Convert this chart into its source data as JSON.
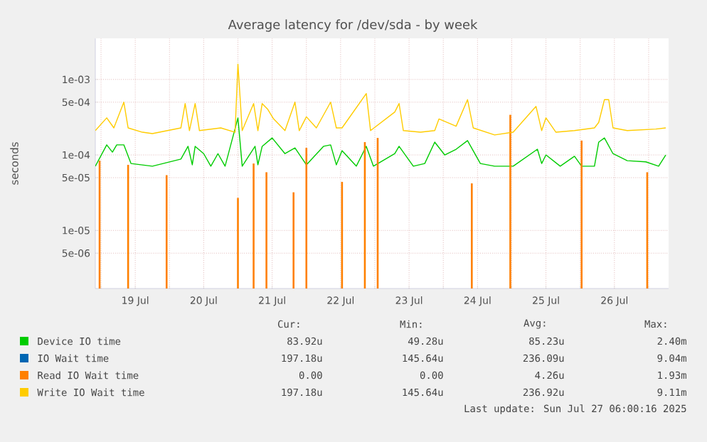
{
  "chart_data": {
    "type": "line",
    "title": "Average latency for /dev/sda - by week",
    "ylabel": "seconds",
    "log": "y",
    "grid": true,
    "legend": "bottom",
    "xlim": [
      "2025-07-18T22:00",
      "2025-07-27T07:00"
    ],
    "xticks": [
      {
        "value": "2025-07-19T00:00",
        "label": null
      },
      {
        "value": "2025-07-19T12:00",
        "label": "19 Jul"
      },
      {
        "value": "2025-07-20T00:00",
        "label": null
      },
      {
        "value": "2025-07-20T12:00",
        "label": "20 Jul"
      },
      {
        "value": "2025-07-21T00:00",
        "label": null
      },
      {
        "value": "2025-07-21T12:00",
        "label": "21 Jul"
      },
      {
        "value": "2025-07-22T00:00",
        "label": null
      },
      {
        "value": "2025-07-22T12:00",
        "label": "22 Jul"
      },
      {
        "value": "2025-07-23T00:00",
        "label": null
      },
      {
        "value": "2025-07-23T12:00",
        "label": "23 Jul"
      },
      {
        "value": "2025-07-24T00:00",
        "label": null
      },
      {
        "value": "2025-07-24T12:00",
        "label": "24 Jul"
      },
      {
        "value": "2025-07-25T00:00",
        "label": null
      },
      {
        "value": "2025-07-25T12:00",
        "label": "25 Jul"
      },
      {
        "value": "2025-07-26T00:00",
        "label": null
      },
      {
        "value": "2025-07-26T12:00",
        "label": "26 Jul"
      },
      {
        "value": "2025-07-27T00:00",
        "label": null
      }
    ],
    "ylim": [
      1.7e-06,
      0.0035
    ],
    "yticks": [
      {
        "value": 5e-06,
        "label": "5e-06"
      },
      {
        "value": 1e-05,
        "label": "1e-05"
      },
      {
        "value": 5e-05,
        "label": "5e-05"
      },
      {
        "value": 0.0001,
        "label": "1e-04"
      },
      {
        "value": 0.0005,
        "label": "5e-04"
      },
      {
        "value": 0.001,
        "label": "1e-03"
      }
    ],
    "series": [
      {
        "name": "Device IO time",
        "color": "#00cc00",
        "x": [
          "2025-07-18T22:00",
          "2025-07-19T02:00",
          "2025-07-19T04:00",
          "2025-07-19T05:30",
          "2025-07-19T08:00",
          "2025-07-19T10:30",
          "2025-07-19T18:00",
          "2025-07-20T04:00",
          "2025-07-20T06:30",
          "2025-07-20T08:00",
          "2025-07-20T09:00",
          "2025-07-20T12:00",
          "2025-07-20T14:30",
          "2025-07-20T17:00",
          "2025-07-20T19:30",
          "2025-07-21T00:00",
          "2025-07-21T01:30",
          "2025-07-21T06:00",
          "2025-07-21T07:00",
          "2025-07-21T08:30",
          "2025-07-21T12:00",
          "2025-07-21T16:30",
          "2025-07-21T20:00",
          "2025-07-22T00:00",
          "2025-07-22T06:00",
          "2025-07-22T08:30",
          "2025-07-22T10:30",
          "2025-07-22T12:30",
          "2025-07-22T17:30",
          "2025-07-22T21:00",
          "2025-07-22T23:30",
          "2025-07-23T07:00",
          "2025-07-23T08:30",
          "2025-07-23T13:30",
          "2025-07-23T17:30",
          "2025-07-23T21:00",
          "2025-07-24T00:30",
          "2025-07-24T04:30",
          "2025-07-24T08:30",
          "2025-07-24T13:00",
          "2025-07-24T18:00",
          "2025-07-25T00:30",
          "2025-07-25T09:00",
          "2025-07-25T10:30",
          "2025-07-25T12:00",
          "2025-07-25T17:00",
          "2025-07-25T22:00",
          "2025-07-26T00:30",
          "2025-07-26T05:00",
          "2025-07-26T06:30",
          "2025-07-26T08:30",
          "2025-07-26T11:30",
          "2025-07-26T16:30",
          "2025-07-26T23:00",
          "2025-07-27T03:30",
          "2025-07-27T06:00"
        ],
        "values": [
          7.1e-05,
          0.000136,
          0.000109,
          0.000136,
          0.000136,
          7.7e-05,
          7.1e-05,
          8.8e-05,
          0.00013,
          7.4e-05,
          0.00013,
          0.000104,
          7.1e-05,
          0.000104,
          7.1e-05,
          0.00031,
          7.1e-05,
          0.00013,
          7.4e-05,
          0.00013,
          0.000168,
          0.000104,
          0.000124,
          7.4e-05,
          0.00013,
          0.000136,
          7.4e-05,
          0.000114,
          7.1e-05,
          0.00013,
          7.1e-05,
          0.000104,
          0.00013,
          7.1e-05,
          7.7e-05,
          0.000148,
          0.0001,
          0.000119,
          0.000155,
          7.7e-05,
          7.1e-05,
          7.1e-05,
          0.000119,
          7.7e-05,
          0.0001,
          7.1e-05,
          9.6e-05,
          7.1e-05,
          7.1e-05,
          0.000148,
          0.000168,
          0.000104,
          8.4e-05,
          8.1e-05,
          7.1e-05,
          0.0001
        ]
      },
      {
        "name": "IO Wait time",
        "color": "#0066b3"
      },
      {
        "name": "Read IO Wait time",
        "color": "#ff8000",
        "type": "bar",
        "x": [
          "2025-07-18T23:30",
          "2025-07-19T09:30",
          "2025-07-19T23:00",
          "2025-07-21T00:00",
          "2025-07-21T05:30",
          "2025-07-21T10:00",
          "2025-07-21T19:30",
          "2025-07-22T00:00",
          "2025-07-22T12:30",
          "2025-07-22T20:30",
          "2025-07-23T01:00",
          "2025-07-24T10:00",
          "2025-07-24T23:30",
          "2025-07-26T00:30",
          "2025-07-26T23:30"
        ],
        "values": [
          8.4e-05,
          7.4e-05,
          5.4e-05,
          2.7e-05,
          7.7e-05,
          5.9e-05,
          3.2e-05,
          0.000124,
          4.4e-05,
          0.000148,
          0.000168,
          4.2e-05,
          0.00034,
          0.000155,
          5.9e-05
        ]
      },
      {
        "name": "Write IO Wait time",
        "color": "#ffcc00",
        "x": [
          "2025-07-18T22:00",
          "2025-07-19T02:00",
          "2025-07-19T04:30",
          "2025-07-19T08:00",
          "2025-07-19T09:30",
          "2025-07-19T14:30",
          "2025-07-19T18:00",
          "2025-07-20T04:00",
          "2025-07-20T05:30",
          "2025-07-20T07:00",
          "2025-07-20T09:00",
          "2025-07-20T10:30",
          "2025-07-20T18:00",
          "2025-07-20T23:00",
          "2025-07-21T00:00",
          "2025-07-21T01:30",
          "2025-07-21T05:30",
          "2025-07-21T07:00",
          "2025-07-21T08:30",
          "2025-07-21T10:30",
          "2025-07-21T12:30",
          "2025-07-21T16:30",
          "2025-07-21T20:00",
          "2025-07-21T21:30",
          "2025-07-22T00:00",
          "2025-07-22T03:30",
          "2025-07-22T08:30",
          "2025-07-22T10:30",
          "2025-07-22T12:30",
          "2025-07-22T21:00",
          "2025-07-22T22:30",
          "2025-07-23T07:00",
          "2025-07-23T08:30",
          "2025-07-23T10:00",
          "2025-07-23T16:00",
          "2025-07-23T21:00",
          "2025-07-23T22:30",
          "2025-07-24T04:30",
          "2025-07-24T08:30",
          "2025-07-24T10:30",
          "2025-07-24T18:00",
          "2025-07-25T00:30",
          "2025-07-25T08:30",
          "2025-07-25T10:30",
          "2025-07-25T12:00",
          "2025-07-25T15:30",
          "2025-07-25T22:00",
          "2025-07-26T05:00",
          "2025-07-26T06:30",
          "2025-07-26T08:30",
          "2025-07-26T10:00",
          "2025-07-26T11:30",
          "2025-07-26T16:30",
          "2025-07-27T02:30",
          "2025-07-27T06:00"
        ],
        "values": [
          0.00021,
          0.00031,
          0.000228,
          0.0005,
          0.000228,
          0.0002,
          0.000192,
          0.000228,
          0.00048,
          0.00021,
          0.00048,
          0.00021,
          0.000228,
          0.0002,
          0.0016,
          0.00021,
          0.00048,
          0.00021,
          0.00048,
          0.0004,
          0.0003,
          0.00021,
          0.0005,
          0.00021,
          0.00032,
          0.000228,
          0.0005,
          0.000228,
          0.000228,
          0.00065,
          0.00021,
          0.00037,
          0.00048,
          0.00021,
          0.0002,
          0.00021,
          0.0003,
          0.00024,
          0.00054,
          0.000228,
          0.000184,
          0.0002,
          0.00044,
          0.00021,
          0.00031,
          0.0002,
          0.00021,
          0.000228,
          0.00027,
          0.00054,
          0.00054,
          0.000228,
          0.00021,
          0.00022,
          0.000228
        ]
      }
    ],
    "annotations": [
      "Cur:",
      "Min:",
      "Avg:",
      "Max:",
      "83.92u",
      "49.28u",
      "85.23u",
      "2.40m",
      "197.18u",
      "145.64u",
      "236.09u",
      "9.04m",
      "0.00",
      "0.00",
      "4.26u",
      "1.93m",
      "197.18u",
      "145.64u",
      "236.92u",
      "9.11m",
      "Last update: Sun Jul 27 06:00:16 2025"
    ]
  }
}
